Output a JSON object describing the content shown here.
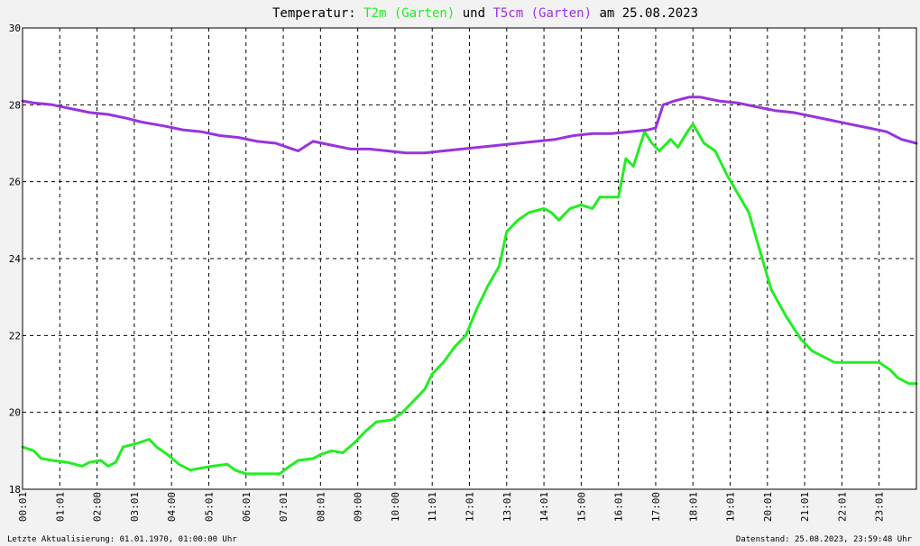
{
  "title": {
    "prefix": "Temperatur: ",
    "series1": "T2m (Garten)",
    "mid": " und ",
    "series2": "T5cm (Garten)",
    "suffix": " am 25.08.2023"
  },
  "footer": {
    "left": "Letzte Aktualisierung: 01.01.1970, 01:00:00 Uhr",
    "right": "Datenstand: 25.08.2023, 23:59:48 Uhr"
  },
  "colors": {
    "t2m": "#22ee22",
    "t5cm": "#9933dd",
    "background": "#f2f2f2",
    "plot": "#ffffff",
    "grid": "#000000"
  },
  "chart_data": {
    "type": "line",
    "title": "Temperatur: T2m (Garten) und T5cm (Garten) am 25.08.2023",
    "xlabel": "",
    "ylabel": "",
    "xlim": [
      0,
      24
    ],
    "ylim": [
      18,
      30
    ],
    "grid": true,
    "x_tick_labels": [
      "00:01",
      "01:01",
      "02:00",
      "03:01",
      "04:00",
      "05:01",
      "06:01",
      "07:01",
      "08:01",
      "09:00",
      "10:00",
      "11:01",
      "12:01",
      "13:01",
      "14:01",
      "15:00",
      "16:01",
      "17:00",
      "18:01",
      "19:01",
      "20:01",
      "21:01",
      "22:01",
      "23:01"
    ],
    "y_tick_labels": [
      "18",
      "20",
      "22",
      "24",
      "26",
      "28",
      "30"
    ],
    "series": [
      {
        "name": "T2m (Garten)",
        "color": "#22ee22",
        "x": [
          0,
          0.3,
          0.5,
          0.8,
          1.2,
          1.6,
          1.8,
          2.1,
          2.3,
          2.5,
          2.7,
          2.9,
          3.1,
          3.4,
          3.6,
          3.9,
          4.2,
          4.5,
          4.8,
          5.1,
          5.5,
          5.7,
          6.0,
          6.4,
          6.9,
          7.1,
          7.4,
          7.8,
          8.0,
          8.3,
          8.6,
          8.9,
          9.2,
          9.5,
          9.9,
          10.2,
          10.5,
          10.8,
          11.0,
          11.3,
          11.6,
          11.9,
          12.2,
          12.5,
          12.8,
          13.0,
          13.3,
          13.6,
          14.0,
          14.2,
          14.4,
          14.7,
          15.0,
          15.3,
          15.5,
          15.8,
          16.0,
          16.2,
          16.4,
          16.7,
          16.9,
          17.1,
          17.4,
          17.6,
          17.85,
          18.0,
          18.3,
          18.6,
          18.9,
          19.2,
          19.5,
          19.8,
          20.1,
          20.5,
          20.9,
          21.2,
          21.5,
          21.8,
          22.2,
          22.6,
          23.0,
          23.3,
          23.5,
          23.8,
          24.0
        ],
        "values": [
          19.1,
          19.0,
          18.8,
          18.75,
          18.7,
          18.6,
          18.7,
          18.75,
          18.6,
          18.7,
          19.1,
          19.15,
          19.2,
          19.3,
          19.1,
          18.9,
          18.65,
          18.5,
          18.55,
          18.6,
          18.65,
          18.5,
          18.4,
          18.4,
          18.4,
          18.55,
          18.75,
          18.8,
          18.9,
          19.0,
          18.95,
          19.2,
          19.5,
          19.75,
          19.8,
          20.0,
          20.3,
          20.6,
          21.0,
          21.3,
          21.7,
          22.0,
          22.7,
          23.3,
          23.8,
          24.7,
          25.0,
          25.2,
          25.3,
          25.2,
          25.0,
          25.3,
          25.4,
          25.3,
          25.6,
          25.6,
          25.6,
          26.6,
          26.4,
          27.3,
          27.0,
          26.8,
          27.1,
          26.9,
          27.3,
          27.5,
          27.0,
          26.8,
          26.2,
          25.7,
          25.2,
          24.2,
          23.2,
          22.5,
          21.9,
          21.6,
          21.45,
          21.3,
          21.3,
          21.3,
          21.3,
          21.1,
          20.9,
          20.75,
          20.75
        ]
      },
      {
        "name": "T5cm (Garten)",
        "color": "#9933dd",
        "x": [
          0,
          0.3,
          0.8,
          1.3,
          1.8,
          2.3,
          2.8,
          3.2,
          3.8,
          4.3,
          4.8,
          5.3,
          5.8,
          6.3,
          6.8,
          7.1,
          7.4,
          7.8,
          8.3,
          8.8,
          9.3,
          9.8,
          10.3,
          10.8,
          11.3,
          11.8,
          12.3,
          12.8,
          13.3,
          13.8,
          14.3,
          14.8,
          15.3,
          15.8,
          16.3,
          16.8,
          17.0,
          17.2,
          17.5,
          17.9,
          18.2,
          18.7,
          19.2,
          19.7,
          20.2,
          20.7,
          21.2,
          21.7,
          22.2,
          22.7,
          23.2,
          23.6,
          24.0
        ],
        "values": [
          28.1,
          28.05,
          28.0,
          27.9,
          27.8,
          27.75,
          27.65,
          27.55,
          27.45,
          27.35,
          27.3,
          27.2,
          27.15,
          27.05,
          27.0,
          26.9,
          26.8,
          27.05,
          26.95,
          26.85,
          26.85,
          26.8,
          26.75,
          26.75,
          26.8,
          26.85,
          26.9,
          26.95,
          27.0,
          27.05,
          27.1,
          27.2,
          27.25,
          27.25,
          27.3,
          27.35,
          27.4,
          28.0,
          28.1,
          28.2,
          28.2,
          28.1,
          28.05,
          27.95,
          27.85,
          27.8,
          27.7,
          27.6,
          27.5,
          27.4,
          27.3,
          27.1,
          27.0
        ]
      }
    ]
  }
}
